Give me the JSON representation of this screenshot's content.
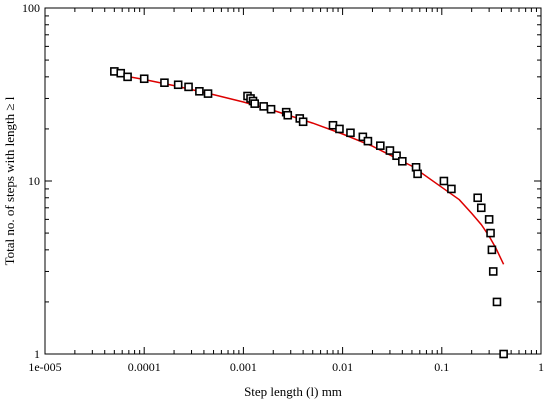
{
  "chart_data": {
    "type": "scatter",
    "title": "",
    "xlabel": "Step length (l) mm",
    "ylabel": "Total no. of steps with length ≥ l",
    "x_scale": "log",
    "y_scale": "log",
    "xlim": [
      1e-05,
      1
    ],
    "ylim": [
      1,
      100
    ],
    "grid": false,
    "x_tick_labels": [
      "1e-005",
      "0.0001",
      "0.001",
      "0.01",
      "0.1",
      "1"
    ],
    "y_tick_labels": [
      "1",
      "10",
      "100"
    ],
    "series": [
      {
        "kind": "markers",
        "marker": "open-square",
        "color": "#000000",
        "x": [
          5e-05,
          5.8e-05,
          6.8e-05,
          0.0001,
          0.00016,
          0.00022,
          0.00028,
          0.00036,
          0.00044,
          0.0011,
          0.00118,
          0.00125,
          0.0013,
          0.0016,
          0.0019,
          0.0027,
          0.0028,
          0.0037,
          0.004,
          0.008,
          0.0093,
          0.012,
          0.016,
          0.018,
          0.024,
          0.03,
          0.035,
          0.04,
          0.055,
          0.057,
          0.105,
          0.125,
          0.23,
          0.25,
          0.3,
          0.31,
          0.32,
          0.33,
          0.36,
          0.42
        ],
        "y": [
          43,
          42,
          40,
          39,
          37,
          36,
          35,
          33,
          32,
          31,
          30,
          29,
          28,
          27,
          26,
          25,
          24,
          23,
          22,
          21,
          20,
          19,
          18,
          17,
          16,
          15,
          14,
          13,
          12,
          11,
          10,
          9,
          8,
          7,
          6,
          5,
          4,
          3,
          2,
          1
        ]
      },
      {
        "kind": "line",
        "color": "#dd0000",
        "x": [
          5e-05,
          0.0001,
          0.0002,
          0.0005,
          0.001,
          0.002,
          0.005,
          0.01,
          0.02,
          0.05,
          0.1,
          0.15,
          0.2,
          0.25,
          0.3,
          0.35,
          0.4,
          0.42
        ],
        "y": [
          41.5,
          38.6,
          35.6,
          31.6,
          28.6,
          25.6,
          21.6,
          18.7,
          15.9,
          12.2,
          9.2,
          7.8,
          6.5,
          5.6,
          4.8,
          4.1,
          3.5,
          3.3
        ]
      }
    ]
  }
}
